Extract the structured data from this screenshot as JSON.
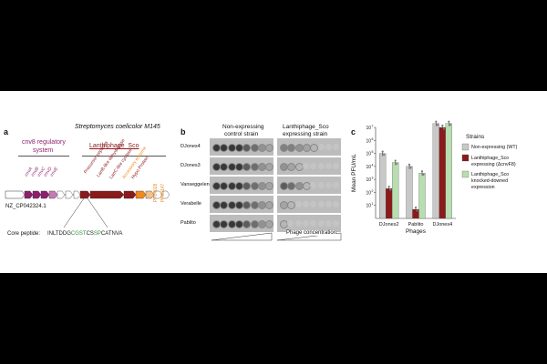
{
  "panel_a": {
    "letter": "a",
    "title": "Streptomyces coelicolor M145",
    "regulatory_label_line1": "cnv8 regulatory",
    "regulatory_label_line2": "system",
    "lanthiphage_label": "Lanthiphage_Sco",
    "accession": "NZ_CP042324.1",
    "gene_labels_regulatory": [
      "cnvA",
      "cnvB",
      "cnvC",
      "cnvD",
      "cnvE"
    ],
    "gene_labels_operon": [
      "Precursor peptides",
      "LanB-like dehydratase",
      "LanC-like cyclase",
      "Accessory enzyme",
      "Hypo Protein"
    ],
    "pf_labels": [
      "PF14028",
      "PF05147"
    ],
    "core_peptide_label": "Core peptide:",
    "core_peptide_segments": [
      {
        "text": "INLTDDG",
        "color": "#1a1a1a"
      },
      {
        "text": "CGST",
        "color": "#2f8f3a"
      },
      {
        "text": "CS",
        "color": "#1a1a1a"
      },
      {
        "text": "SP",
        "color": "#2f8f3a"
      },
      {
        "text": "CATNVA",
        "color": "#1a1a1a"
      }
    ],
    "colors": {
      "regulatory": "#8e1f6e",
      "lanthi": "#8b1a1a",
      "accessory": "#f08a1c",
      "pf": "#f08a1c"
    }
  },
  "panel_b": {
    "letter": "b",
    "col1_line1": "Non-expressing",
    "col1_line2": "control strain",
    "col2_line1": "Lanthiphage_Sco",
    "col2_line2": "expressing strain",
    "rows": [
      "DJones4",
      "DJones3",
      "Vanseggelen",
      "Verabelle",
      "Pablito"
    ],
    "xlabel": "Phage concentration"
  },
  "panel_c": {
    "letter": "c",
    "ylabel": "Mean PFU/mL",
    "xlabel": "Phages",
    "legend_title": "Strains",
    "legend": [
      {
        "lines": [
          "Non-expressing (WT)"
        ],
        "color": "#c8c8c8"
      },
      {
        "lines": [
          "Lanthiphage_Sco",
          "expressing (ΔcnvF8)"
        ],
        "color": "#8b1a1a"
      },
      {
        "lines": [
          "Lanthiphage_Sco",
          "knocked-downed",
          "expression"
        ],
        "color": "#b9ddb0"
      }
    ],
    "y_ticks": [
      "10",
      "10",
      "10",
      "10",
      "10",
      "10",
      "10"
    ],
    "y_tick_exponents": [
      "1",
      "2",
      "3",
      "4",
      "5",
      "6",
      "7"
    ]
  },
  "chart_data": {
    "type": "bar",
    "categories": [
      "DJones2",
      "Pablito",
      "DJones4"
    ],
    "series": [
      {
        "name": "Non-expressing (WT)",
        "values": [
          100000,
          10000,
          20000000
        ]
      },
      {
        "name": "Lanthiphage_Sco expressing (ΔcnvF8)",
        "values": [
          200,
          5,
          10000000
        ]
      },
      {
        "name": "Lanthiphage_Sco knocked-downed expression",
        "values": [
          20000,
          3000,
          20000000
        ]
      }
    ],
    "xlabel": "Phages",
    "ylabel": "Mean PFU/mL",
    "ylim": [
      1,
      10000000
    ],
    "yscale": "log",
    "colors": [
      "#c8c8c8",
      "#8b1a1a",
      "#b9ddb0"
    ],
    "legend_title": "Strains",
    "legend_position": "right"
  }
}
